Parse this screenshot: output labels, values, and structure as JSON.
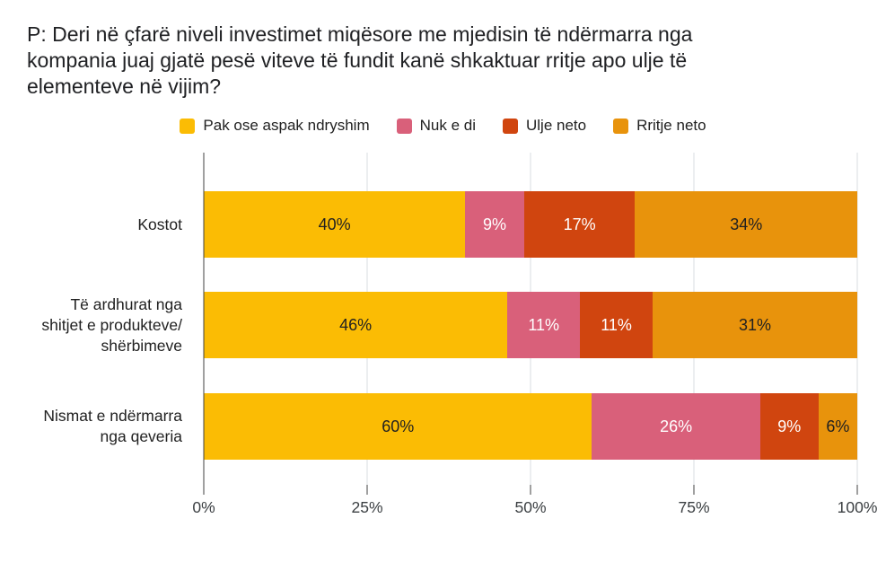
{
  "page": {
    "background": "#ffffff"
  },
  "chart_data": {
    "type": "bar",
    "subtype": "horizontal-stacked",
    "title": "P: Deri në çfarë niveli investimet miqësore me mjedisin të ndërmarra nga kompania juaj gjatë pesë viteve të fundit kanë shkaktuar rritje apo ulje të elementeve në vijim?",
    "title_lines": [
      "P: Deri në çfarë niveli investimet miqësore me mjedisin të ndërmarra nga",
      "kompania juaj gjatë pesë viteve të fundit kanë shkaktuar rritje apo ulje të",
      "elementeve në vijim?"
    ],
    "legend_position": "top",
    "grid": true,
    "categories": [
      {
        "label": "Kostot",
        "lines": [
          "Kostot"
        ]
      },
      {
        "label": "Të ardhurat nga shitjet e produkteve/ shërbimeve",
        "lines": [
          "Të ardhurat nga",
          "shitjet e produkteve/",
          "shërbimeve"
        ]
      },
      {
        "label": "Nismat e ndërmarra nga qeveria",
        "lines": [
          "Nismat e ndërmarra",
          "nga qeveria"
        ]
      }
    ],
    "series": [
      {
        "name": "Pak ose aspak ndryshim",
        "color": "#FBBC04",
        "label_color": "#212121",
        "values": [
          40,
          46,
          60
        ]
      },
      {
        "name": "Nuk e di",
        "color": "#D9607A",
        "label_color": "#FFFFFF",
        "values": [
          9,
          11,
          26
        ]
      },
      {
        "name": "Ulje neto",
        "color": "#D0450F",
        "label_color": "#FFFFFF",
        "values": [
          17,
          11,
          9
        ]
      },
      {
        "name": "Rritje neto",
        "color": "#E8930C",
        "label_color": "#212121",
        "values": [
          34,
          31,
          6
        ]
      }
    ],
    "value_suffix": "%",
    "x_axis": {
      "ticks": [
        "0%",
        "25%",
        "50%",
        "75%",
        "100%"
      ],
      "min": 0,
      "max": 100
    },
    "colors": {
      "gridline": "#dadce0",
      "axis_line": "#424242",
      "title_text": "#202124",
      "axis_text": "#3c4043"
    }
  }
}
